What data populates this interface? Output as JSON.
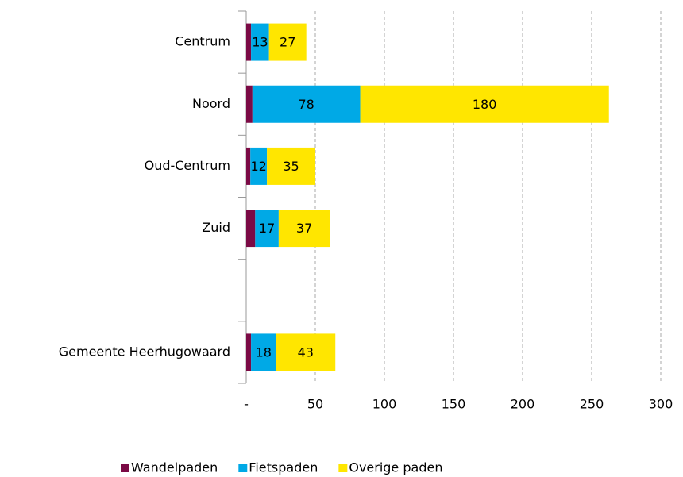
{
  "chart_data": {
    "type": "stacked-barh",
    "categories": [
      "Centrum",
      "Noord",
      "Oud-Centrum",
      "Zuid",
      null,
      "Gemeente Heerhugowaard"
    ],
    "series": [
      {
        "name": "Wandelpaden",
        "color": "#7b0a45",
        "values": [
          3.5,
          4.5,
          3,
          6.5,
          null,
          3.5
        ],
        "show_labels": false
      },
      {
        "name": "Fietspaden",
        "color": "#00a9e6",
        "values": [
          13,
          78,
          12,
          17,
          null,
          18
        ],
        "show_labels": true
      },
      {
        "name": "Overige paden",
        "color": "#ffe600",
        "values": [
          27,
          180,
          35,
          37,
          null,
          43
        ],
        "show_labels": true
      }
    ],
    "xlim": [
      0,
      300
    ],
    "xticks": [
      {
        "value": 0,
        "label": "-"
      },
      50,
      100,
      150,
      200,
      250,
      300
    ],
    "grid": true,
    "legend": "bottom"
  }
}
